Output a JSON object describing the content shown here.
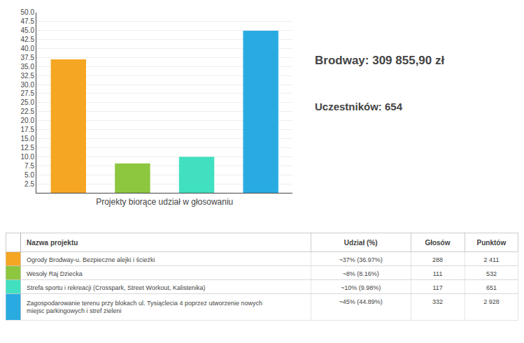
{
  "chart_data": [
    {
      "type": "bar",
      "title": "Brodway: 309 855,90 zł",
      "subtitle": "Uczestników: 654",
      "xlabel": "Projekty biorące udział w głosowaniu",
      "categories": [
        null,
        null,
        null,
        null
      ],
      "values": [
        36.97,
        8.16,
        9.98,
        44.89
      ],
      "colors": [
        "#f5a623",
        "#8dc63f",
        "#40e0c0",
        "#29abe2"
      ],
      "ylim": [
        0,
        50
      ],
      "yticks": [
        2.5,
        {
          "value": 5,
          "label": "5.0"
        },
        7.5,
        {
          "value": 10,
          "label": "10.0"
        },
        12.5,
        {
          "value": 15,
          "label": "15.0"
        },
        17.5,
        {
          "value": 20,
          "label": "20.0"
        },
        22.5,
        {
          "value": 25,
          "label": "25.0"
        },
        27.5,
        {
          "value": 30,
          "label": "30.0"
        },
        32.5,
        {
          "value": 35,
          "label": "35.0"
        },
        37.5,
        {
          "value": 40,
          "label": "40.0"
        },
        42.5,
        {
          "value": 45,
          "label": "45.0"
        },
        47.5,
        {
          "value": 50,
          "label": "50.0"
        }
      ],
      "grid": true,
      "tick_labels": "y"
    },
    {
      "type": "table",
      "columns": [
        "Nazwa projektu",
        "Udział (%)",
        "Głosów",
        "Punktów"
      ],
      "rows": [
        [
          "Ogrody Brodway-u. Bezpieczne alejki i ścieżki",
          "~37% (36.97%)",
          "288",
          "2 411"
        ],
        [
          "Wesoły Raj Dziecka",
          "~8% (8.16%)",
          "111",
          "532"
        ],
        [
          "Strefa sportu i rekreacji (Crosspark, Street Workout, Kalistenika)",
          "~10% (9.98%)",
          "117",
          "651"
        ],
        [
          "Zagospodarowanie terenu przy blokach ul. Tysiąclecia 4 poprzez utworzenie nowych\nmiejsc parkingowych i stref zieleni",
          "~45% (44.89%)",
          "332",
          "2 928"
        ]
      ],
      "colors": [
        "#f5a623",
        "#8dc63f",
        "#40e0c0",
        "#29abe2"
      ]
    }
  ]
}
